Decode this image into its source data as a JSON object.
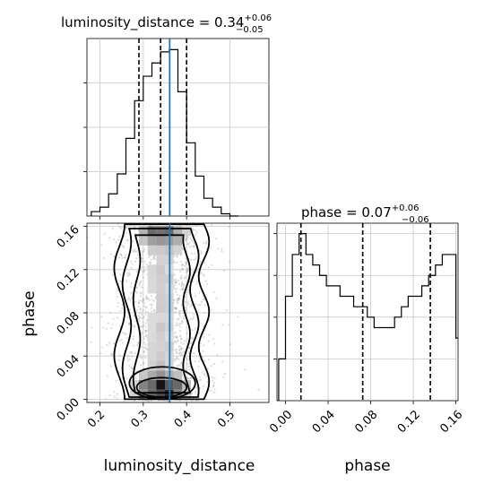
{
  "chart_data": [
    {
      "type": "histogram",
      "panel": "luminosity_distance marginal",
      "title_main": "luminosity_distance = 0.34",
      "title_sup": "+0.06",
      "title_sub": "−0.05",
      "x_param": "luminosity_distance",
      "xlim": [
        0.17,
        0.59
      ],
      "bin_edges": [
        0.18,
        0.2,
        0.22,
        0.24,
        0.26,
        0.28,
        0.3,
        0.32,
        0.34,
        0.36,
        0.38,
        0.4,
        0.42,
        0.44,
        0.46,
        0.48,
        0.5,
        0.52
      ],
      "counts": [
        2,
        4,
        10,
        19,
        35,
        52,
        63,
        69,
        74,
        75,
        56,
        33,
        18,
        8,
        4,
        1,
        0
      ],
      "quantiles": [
        0.29,
        0.34,
        0.4
      ],
      "truth": 0.361,
      "grid": true
    },
    {
      "type": "scatter-density",
      "panel": "phase vs luminosity_distance",
      "x_param": "luminosity_distance",
      "y_param": "phase",
      "xlim": [
        0.17,
        0.59
      ],
      "ylim": [
        -0.003,
        0.163
      ],
      "x_tick_labels": [
        "0.2",
        "0.3",
        "0.4",
        "0.5"
      ],
      "y_tick_labels": [
        "0.00",
        "0.04",
        "0.08",
        "0.12",
        "0.16"
      ],
      "x_ticks": [
        0.2,
        0.3,
        0.4,
        0.5
      ],
      "y_ticks": [
        0.0,
        0.04,
        0.08,
        0.12,
        0.16
      ],
      "xlabel": "luminosity_distance",
      "ylabel": "phase",
      "truth_x": 0.361,
      "grid": true
    },
    {
      "type": "histogram",
      "panel": "phase marginal",
      "title_main": "phase = 0.07",
      "title_sup": "+0.06",
      "title_sub": "−0.06",
      "x_param": "phase",
      "xlim": [
        -0.008,
        0.162
      ],
      "x_tick_labels": [
        "0.00",
        "0.04",
        "0.08",
        "0.12",
        "0.16"
      ],
      "x_ticks": [
        0.0,
        0.04,
        0.08,
        0.12,
        0.16
      ],
      "xlabel": "phase",
      "bin_edges": [
        -0.0064,
        0.0,
        0.0064,
        0.0128,
        0.0192,
        0.0256,
        0.032,
        0.0384,
        0.0448,
        0.0512,
        0.0576,
        0.064,
        0.0704,
        0.0768,
        0.0832,
        0.0896,
        0.096,
        0.1024,
        0.1088,
        0.1152,
        0.1216,
        0.128,
        0.1344,
        0.1408,
        0.1472,
        0.1536,
        0.16,
        0.1664
      ],
      "counts": [
        4,
        10,
        14,
        16,
        14,
        13,
        12,
        11,
        11,
        10,
        10,
        9,
        9,
        8,
        7,
        7,
        7,
        8,
        9,
        10,
        10,
        11,
        12,
        13,
        14,
        14,
        6
      ],
      "quantiles": [
        0.0145,
        0.0725,
        0.136
      ],
      "grid": true
    }
  ]
}
